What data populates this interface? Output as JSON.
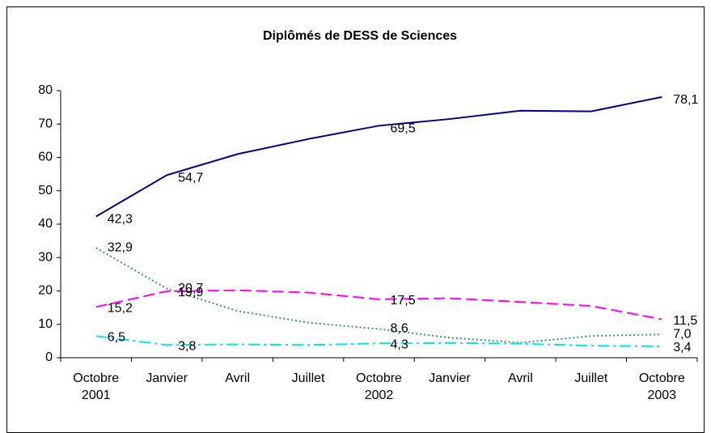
{
  "chart_data": {
    "type": "line",
    "title": "Diplômés de DESS de Sciences",
    "categories": [
      [
        "Octobre",
        "2001"
      ],
      [
        "Janvier"
      ],
      [
        "Avril"
      ],
      [
        "Juillet"
      ],
      [
        "Octobre",
        "2002"
      ],
      [
        "Janvier"
      ],
      [
        "Avril"
      ],
      [
        "Juillet"
      ],
      [
        "Octobre",
        "2003"
      ]
    ],
    "ylim": [
      0,
      80
    ],
    "yticks": [
      0,
      10,
      20,
      30,
      40,
      50,
      60,
      70,
      80
    ],
    "series": [
      {
        "color": "#000080",
        "dash": "solid",
        "values": [
          42.3,
          54.7,
          61,
          65.5,
          69.5,
          71.5,
          74,
          73.8,
          78.1
        ],
        "value_labels": [
          "42,3",
          "54,7",
          null,
          null,
          "69,5",
          null,
          null,
          null,
          "78,1"
        ]
      },
      {
        "color": "#339966",
        "dash": "dotted",
        "values": [
          32.9,
          20.7,
          14,
          10.5,
          8.6,
          6,
          4.5,
          6.5,
          7.0
        ],
        "value_labels": [
          "32,9",
          "20,7",
          null,
          null,
          "8,6",
          null,
          null,
          null,
          "7,0"
        ]
      },
      {
        "color": "#ff00ff",
        "dash": "dashed",
        "values": [
          15.2,
          19.9,
          20.2,
          19.5,
          17.5,
          17.8,
          16.7,
          15.5,
          11.5
        ],
        "value_labels": [
          "15,2",
          "19,9",
          null,
          null,
          "17,5",
          null,
          null,
          null,
          "11,5"
        ]
      },
      {
        "color": "#00e5ee",
        "dash": "dashdot",
        "values": [
          6.5,
          3.8,
          4.0,
          3.8,
          4.3,
          4.4,
          4.2,
          3.6,
          3.4
        ],
        "value_labels": [
          "6,5",
          "3,8",
          null,
          null,
          "4,3",
          null,
          null,
          null,
          "3,4"
        ]
      }
    ]
  }
}
